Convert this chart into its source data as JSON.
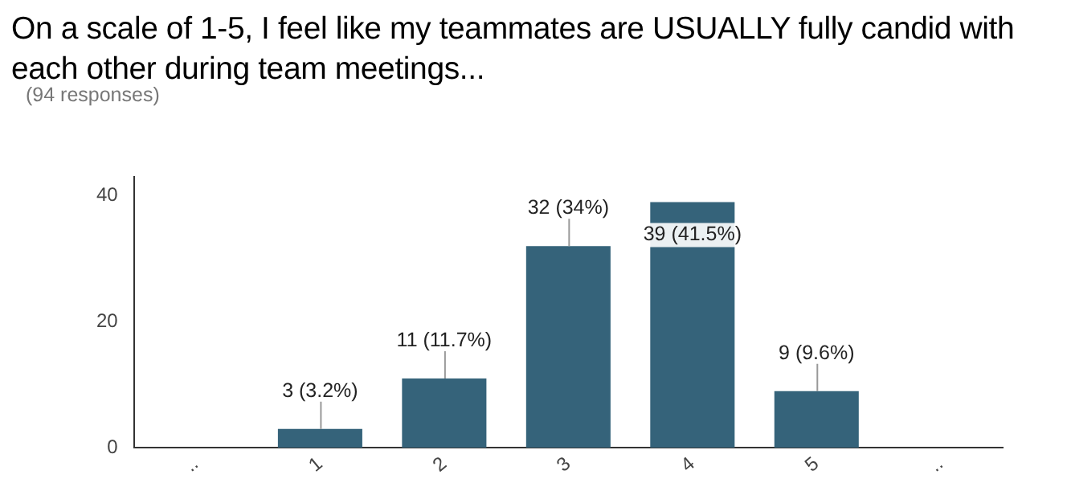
{
  "chart_data": {
    "type": "bar",
    "title": "On a scale of 1-5, I feel like my teammates are USUALLY fully candid with each other during team meetings...",
    "subtitle": "(94 responses)",
    "categories": [
      "..",
      "1",
      "2",
      "3",
      "4",
      "5",
      ".."
    ],
    "values": [
      null,
      3,
      11,
      32,
      39,
      9,
      null
    ],
    "value_labels": [
      null,
      "3 (3.2%)",
      "11 (11.7%)",
      "32 (34%)",
      "39 (41.5%)",
      "9 (9.6%)",
      null
    ],
    "color": "#35637a",
    "ylim": [
      0,
      43
    ],
    "yticks": [
      0,
      20,
      40
    ],
    "grid": false,
    "legend": false
  }
}
